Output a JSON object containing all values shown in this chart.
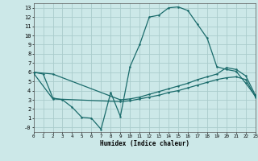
{
  "xlabel": "Humidex (Indice chaleur)",
  "bg_color": "#cce8e8",
  "grid_color": "#aacccc",
  "line_color": "#1a6b6b",
  "xlim": [
    0,
    23
  ],
  "ylim": [
    -0.5,
    13.5
  ],
  "xticks": [
    0,
    1,
    2,
    3,
    4,
    5,
    6,
    7,
    8,
    9,
    10,
    11,
    12,
    13,
    14,
    15,
    16,
    17,
    18,
    19,
    20,
    21,
    22,
    23
  ],
  "yticks": [
    0,
    1,
    2,
    3,
    4,
    5,
    6,
    7,
    8,
    9,
    10,
    11,
    12,
    13
  ],
  "yticklabels": [
    "-0",
    "1",
    "2",
    "3",
    "4",
    "5",
    "6",
    "7",
    "8",
    "9",
    "10",
    "11",
    "12",
    "13"
  ],
  "curve1_x": [
    0,
    1,
    2,
    3,
    4,
    5,
    6,
    7,
    8,
    9,
    10,
    11,
    12,
    13,
    14,
    15,
    16,
    17,
    18,
    19,
    20,
    21,
    22,
    23
  ],
  "curve1_y": [
    6.0,
    5.8,
    3.2,
    3.0,
    2.2,
    1.1,
    1.0,
    -0.2,
    3.8,
    1.2,
    6.6,
    9.0,
    12.0,
    12.2,
    13.0,
    13.1,
    12.7,
    11.2,
    9.7,
    6.6,
    6.3,
    6.1,
    4.8,
    3.4
  ],
  "curve2_x": [
    0,
    2,
    9,
    10,
    11,
    12,
    13,
    14,
    15,
    16,
    17,
    18,
    19,
    20,
    21,
    22,
    23
  ],
  "curve2_y": [
    6.0,
    5.8,
    3.0,
    3.1,
    3.3,
    3.6,
    3.9,
    4.2,
    4.5,
    4.8,
    5.2,
    5.5,
    5.8,
    6.5,
    6.3,
    5.6,
    3.5
  ],
  "curve3_x": [
    0,
    2,
    9,
    10,
    11,
    12,
    13,
    14,
    15,
    16,
    17,
    18,
    19,
    20,
    21,
    22,
    23
  ],
  "curve3_y": [
    5.9,
    3.1,
    2.8,
    2.9,
    3.1,
    3.3,
    3.5,
    3.8,
    4.0,
    4.3,
    4.6,
    4.9,
    5.2,
    5.4,
    5.5,
    5.2,
    3.3
  ]
}
